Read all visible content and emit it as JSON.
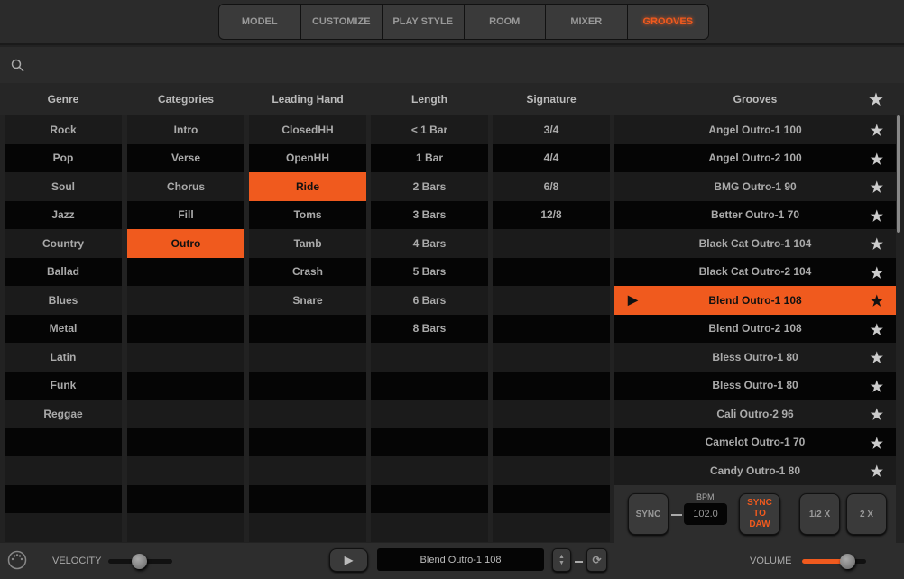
{
  "tabs": [
    {
      "label": "MODEL"
    },
    {
      "label": "CUSTOMIZE"
    },
    {
      "label": "PLAY STYLE"
    },
    {
      "label": "ROOM"
    },
    {
      "label": "MIXER"
    },
    {
      "label": "GROOVES",
      "active": true
    }
  ],
  "accent": "#f05a1e",
  "columns": [
    {
      "header": "Genre",
      "items": [
        "Rock",
        "Pop",
        "Soul",
        "Jazz",
        "Country",
        "Ballad",
        "Blues",
        "Metal",
        "Latin",
        "Funk",
        "Reggae"
      ],
      "selected": null
    },
    {
      "header": "Categories",
      "items": [
        "Intro",
        "Verse",
        "Chorus",
        "Fill",
        "Outro"
      ],
      "selected": 4
    },
    {
      "header": "Leading Hand",
      "items": [
        "ClosedHH",
        "OpenHH",
        "Ride",
        "Toms",
        "Tamb",
        "Crash",
        "Snare"
      ],
      "selected": 2
    },
    {
      "header": "Length",
      "items": [
        "< 1 Bar",
        "1 Bar",
        "2 Bars",
        "3 Bars",
        "4 Bars",
        "5 Bars",
        "6 Bars",
        "8 Bars"
      ],
      "selected": null
    },
    {
      "header": "Signature",
      "items": [
        "3/4",
        "4/4",
        "6/8",
        "12/8"
      ],
      "selected": null
    }
  ],
  "grooves": {
    "header": "Grooves",
    "selected": 6,
    "items": [
      "Angel Outro-1 100",
      "Angel Outro-2 100",
      "BMG Outro-1 90",
      "Better Outro-1 70",
      "Black Cat Outro-1 104",
      "Black Cat Outro-2 104",
      "Blend Outro-1 108",
      "Blend Outro-2 108",
      "Bless Outro-1 80",
      "Bless Outro-1 80",
      "Cali Outro-2 96",
      "Camelot Outro-1 70",
      "Candy Outro-1 80"
    ]
  },
  "controls": {
    "sync": "SYNC",
    "bpm_label": "BPM",
    "bpm": "102.0",
    "sync_daw": "SYNC TO DAW",
    "half": "1/2 X",
    "double": "2 X"
  },
  "bottom": {
    "velocity_label": "VELOCITY",
    "velocity": 0.5,
    "current_groove": "Blend Outro-1 108",
    "volume_label": "VOLUME",
    "volume": 0.7
  }
}
